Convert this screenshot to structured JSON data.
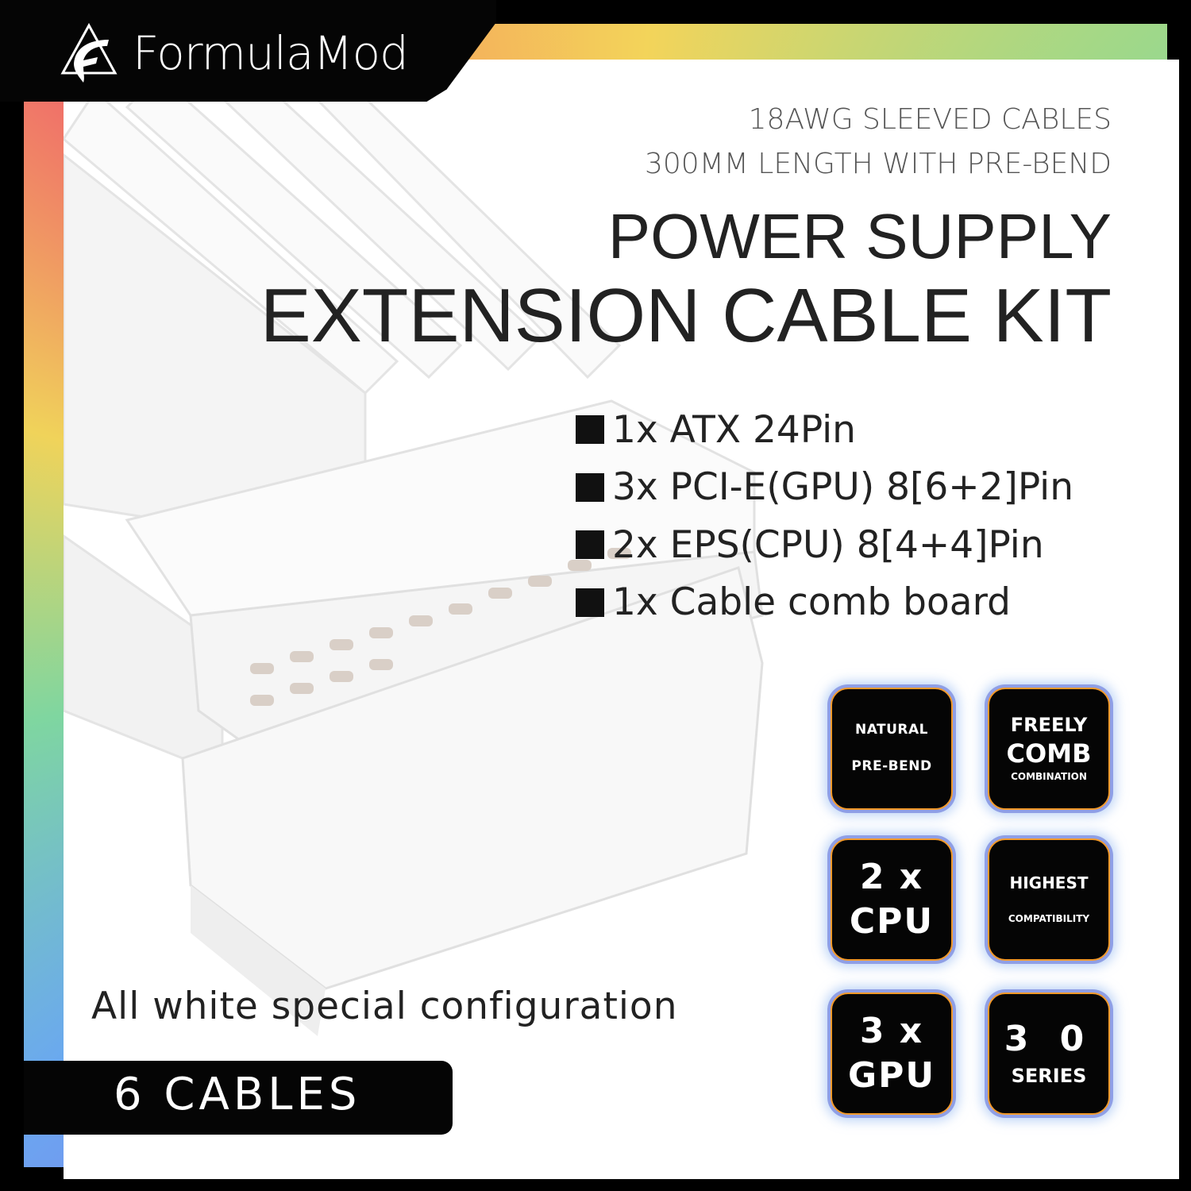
{
  "brand": {
    "name": "FormulaMod",
    "logo_icon": "triangle-f-logo-icon"
  },
  "specs": [
    "18AWG SLEEVED CABLES",
    "300MM LENGTH WITH PRE-BEND"
  ],
  "title": {
    "line1": "POWER SUPPLY",
    "line2": "EXTENSION CABLE KIT"
  },
  "contents": [
    "1x ATX 24Pin",
    "3x PCI-E(GPU) 8[6+2]Pin",
    "2x EPS(CPU) 8[4+4]Pin",
    "1x Cable comb board"
  ],
  "tagline": "All white special configuration",
  "cable_count": "6 CABLES",
  "badges": [
    {
      "lines": [
        "NATURAL",
        "PRE-BEND"
      ]
    },
    {
      "lines": [
        "FREELY",
        "COMB",
        "COMBINATION"
      ]
    },
    {
      "lines": [
        "2 x",
        "CPU"
      ]
    },
    {
      "lines": [
        "HIGHEST",
        "COMPATIBILITY"
      ]
    },
    {
      "lines": [
        "3 x",
        "GPU"
      ]
    },
    {
      "lines": [
        "3 0",
        "SERIES"
      ]
    }
  ],
  "colors": {
    "frame_gradient": [
      "#f0696a",
      "#f3d45a",
      "#9ed88a",
      "#5fd0d8",
      "#6d8ff0",
      "#9b6cf0"
    ],
    "badge_border": "#f39a2a",
    "badge_glow": "#8f9fe6"
  }
}
